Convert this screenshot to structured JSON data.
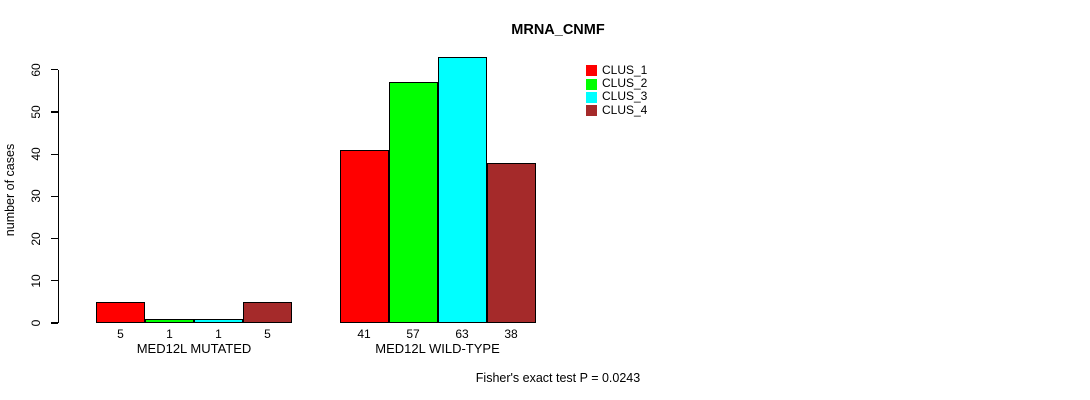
{
  "chart_data": {
    "type": "bar",
    "title": "MRNA_CNMF",
    "ylabel": "number of cases",
    "xlabel": "",
    "ylim": [
      0,
      60
    ],
    "yticks": [
      0,
      10,
      20,
      30,
      40,
      50,
      60
    ],
    "grid": false,
    "legend_position": "top-right-inside",
    "categories": [
      "MED12L MUTATED",
      "MED12L WILD-TYPE"
    ],
    "series": [
      {
        "name": "CLUS_1",
        "color": "#ff0000",
        "values": [
          5,
          41
        ]
      },
      {
        "name": "CLUS_2",
        "color": "#00ff00",
        "values": [
          1,
          57
        ]
      },
      {
        "name": "CLUS_3",
        "color": "#00ffff",
        "values": [
          1,
          63
        ]
      },
      {
        "name": "CLUS_4",
        "color": "#a52a2a",
        "values": [
          5,
          38
        ]
      }
    ],
    "bar_value_labels": [
      [
        "5",
        "1",
        "1",
        "5"
      ],
      [
        "41",
        "57",
        "63",
        "38"
      ]
    ],
    "footnote": "Fisher's exact test P = 0.0243",
    "colors": {
      "axis": "#000000",
      "text": "#000000",
      "background": "#ffffff"
    }
  }
}
